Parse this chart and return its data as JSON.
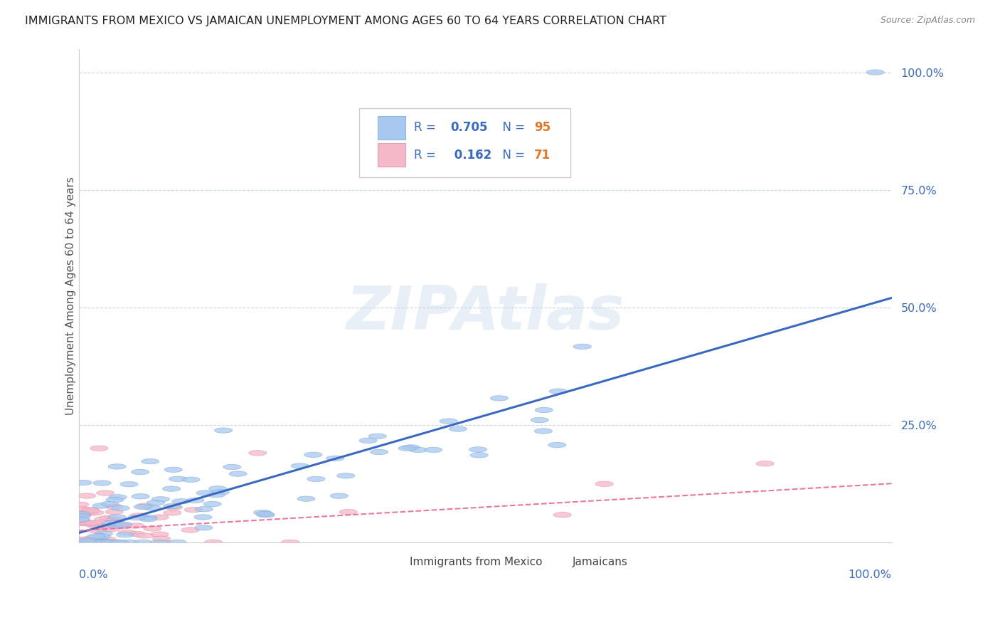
{
  "title": "IMMIGRANTS FROM MEXICO VS JAMAICAN UNEMPLOYMENT AMONG AGES 60 TO 64 YEARS CORRELATION CHART",
  "source": "Source: ZipAtlas.com",
  "ylabel": "Unemployment Among Ages 60 to 64 years",
  "ytick_labels": [
    "",
    "25.0%",
    "50.0%",
    "75.0%",
    "100.0%"
  ],
  "ytick_values": [
    0.0,
    0.25,
    0.5,
    0.75,
    1.0
  ],
  "watermark": "ZIPAtlas",
  "title_color": "#222222",
  "blue_color": "#a8c8f0",
  "pink_color": "#f5b8c8",
  "blue_line_color": "#3a6abf",
  "pink_line_color": "#e878a0",
  "label_color": "#3a6abf",
  "N_color": "#e07828",
  "background_color": "#ffffff",
  "grid_color": "#c8d4e8",
  "legend_text_color": "#3a6abf",
  "source_color": "#888888",
  "axis_label_color": "#555555",
  "blue_line_slope": 0.5,
  "blue_line_intercept": 0.02,
  "pink_line_slope": 0.1,
  "pink_line_intercept": 0.025
}
